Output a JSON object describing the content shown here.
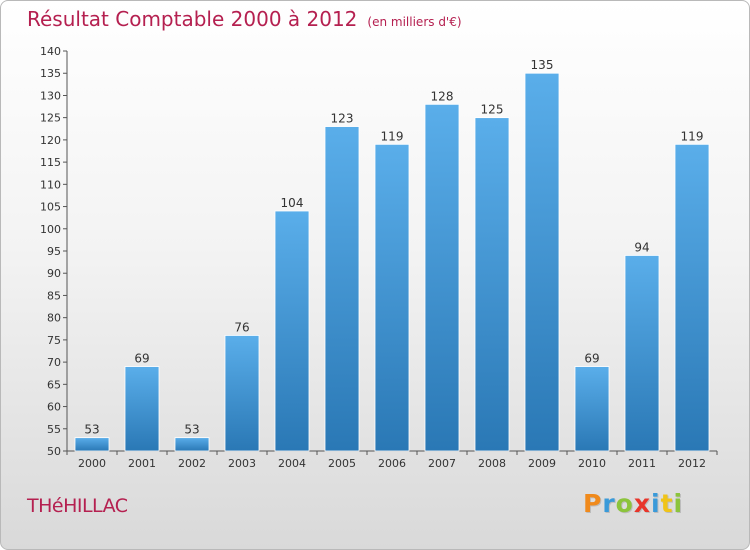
{
  "title": "Résultat Comptable 2000 à 2012",
  "title_unit": "(en milliers d'€)",
  "commune": "THéHILLAC",
  "logo": {
    "text": "Proxiti",
    "letters": [
      {
        "char": "P",
        "color": "#f08a1c"
      },
      {
        "char": "r",
        "color": "#3a9ad9"
      },
      {
        "char": "o",
        "color": "#8cc43c"
      },
      {
        "char": "x",
        "color": "#e8352a"
      },
      {
        "char": "i",
        "color": "#3a9ad9"
      },
      {
        "char": "t",
        "color": "#f0c419"
      },
      {
        "char": "i",
        "color": "#8cc43c"
      }
    ]
  },
  "colors": {
    "bar_top": "#5aaeea",
    "bar_bottom": "#2a78b5",
    "title": "#b52050",
    "axis": "#555555"
  },
  "chart_data": {
    "type": "bar",
    "title": "Résultat Comptable 2000 à 2012",
    "subtitle": "(en milliers d'€)",
    "xlabel": "",
    "ylabel": "",
    "categories": [
      "2000",
      "2001",
      "2002",
      "2003",
      "2004",
      "2005",
      "2006",
      "2007",
      "2008",
      "2009",
      "2010",
      "2011",
      "2012"
    ],
    "values": [
      53,
      69,
      53,
      76,
      104,
      123,
      119,
      128,
      125,
      135,
      69,
      94,
      119
    ],
    "ylim": [
      50,
      140
    ],
    "yticks": [
      50,
      55,
      60,
      65,
      70,
      75,
      80,
      85,
      90,
      95,
      100,
      105,
      110,
      115,
      120,
      125,
      130,
      135,
      140
    ],
    "grid": false,
    "legend": "none"
  }
}
